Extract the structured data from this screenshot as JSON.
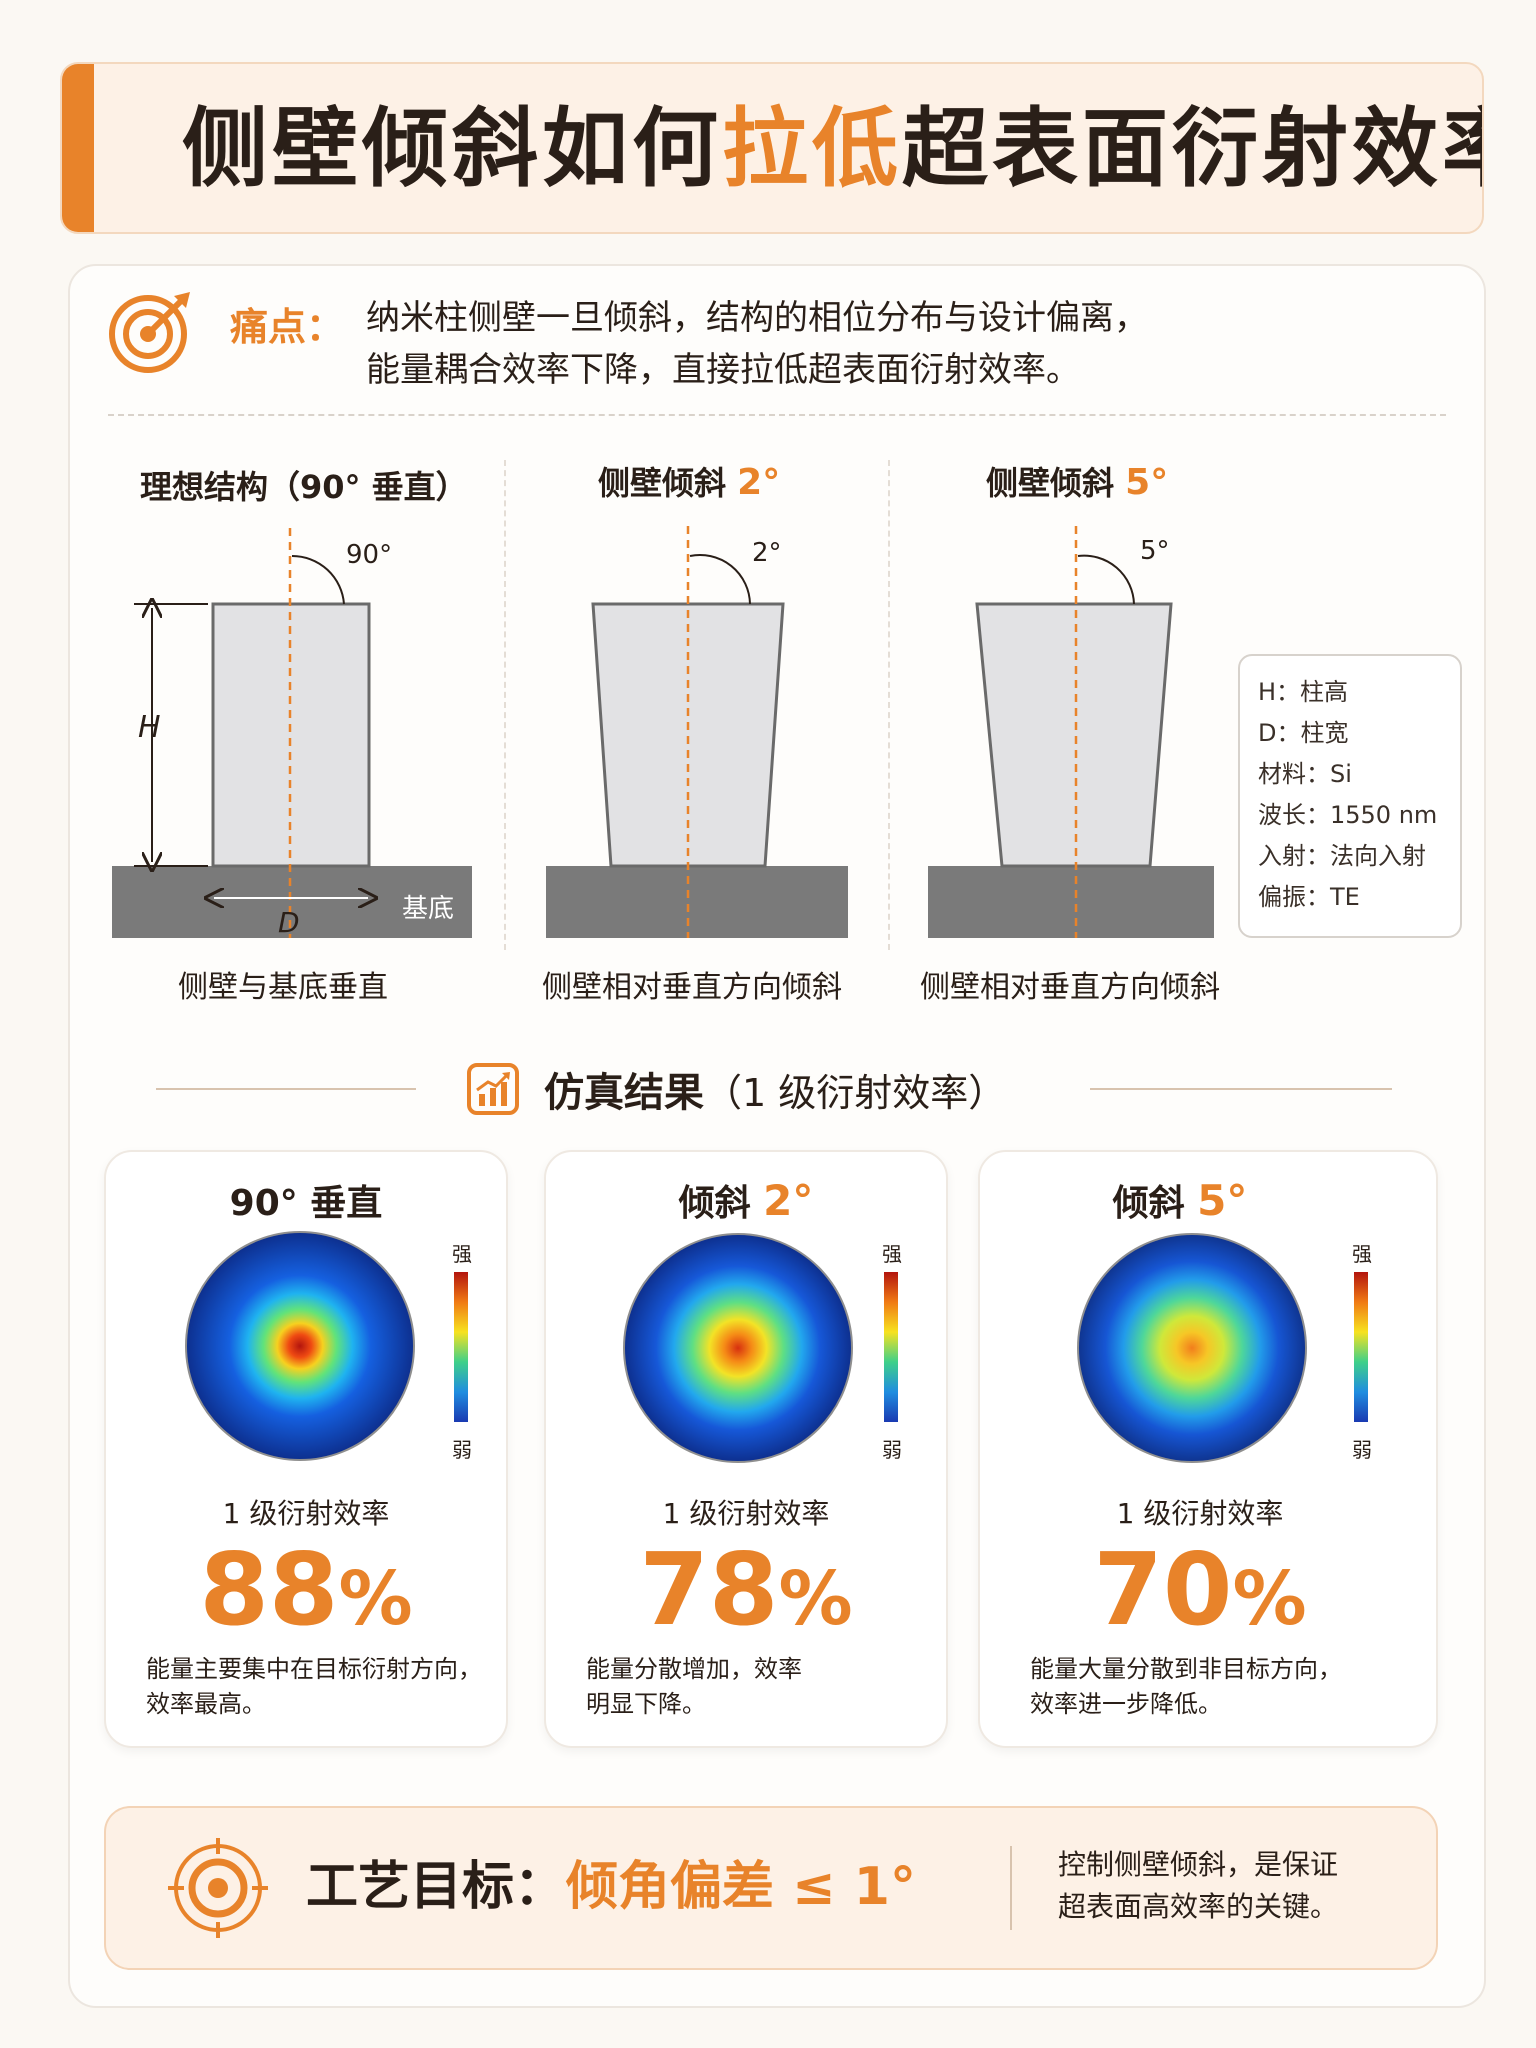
{
  "header": {
    "title_prefix": "侧壁倾斜如何",
    "title_highlight": "拉低",
    "title_suffix": "超表面衍射效率"
  },
  "pain_point": {
    "label": "痛点：",
    "line1": "纳米柱侧壁一旦倾斜，结构的相位分布与设计偏离，",
    "line2": "能量耦合效率下降，直接拉低超表面衍射效率。",
    "icon": "target-arrow-icon"
  },
  "structures": [
    {
      "title": "理想结构（90° 垂直）",
      "title_highlight": "",
      "angle_label": "90°",
      "caption": "侧壁与基底垂直",
      "tilt_deg": 0
    },
    {
      "title": "侧壁倾斜",
      "title_highlight": "2°",
      "angle_label": "2°",
      "caption": "侧壁相对垂直方向倾斜",
      "tilt_deg": 2
    },
    {
      "title": "侧壁倾斜",
      "title_highlight": "5°",
      "angle_label": "5°",
      "caption": "侧壁相对垂直方向倾斜",
      "tilt_deg": 5
    }
  ],
  "dimension_labels": {
    "height": "H",
    "diameter": "D",
    "substrate": "基底"
  },
  "legend": [
    "H：柱高",
    "D：柱宽",
    "材料：Si",
    "波长：1550 nm",
    "入射：法向入射",
    "偏振：TE"
  ],
  "results_section": {
    "title": "仿真结果",
    "subtitle": "（1 级衍射效率）",
    "icon": "chart-growth-icon"
  },
  "results": [
    {
      "title": "90° 垂直",
      "title_highlight": "",
      "metric_label": "1 级衍射效率",
      "value": "88",
      "unit": "%",
      "note_line1": "能量主要集中在目标衍射方向，",
      "note_line2": "效率最高。",
      "colorbar_high": "强",
      "colorbar_low": "弱",
      "spot_spread": 0.28
    },
    {
      "title": "倾斜",
      "title_highlight": "2°",
      "metric_label": "1 级衍射效率",
      "value": "78",
      "unit": "%",
      "note_line1": "能量分散增加，效率",
      "note_line2": "明显下降。",
      "colorbar_high": "强",
      "colorbar_low": "弱",
      "spot_spread": 0.38
    },
    {
      "title": "倾斜",
      "title_highlight": "5°",
      "metric_label": "1 级衍射效率",
      "value": "70",
      "unit": "%",
      "note_line1": "能量大量分散到非目标方向，",
      "note_line2": "效率进一步降低。",
      "colorbar_high": "强",
      "colorbar_low": "弱",
      "spot_spread": 0.5
    }
  ],
  "goal": {
    "label": "工艺目标：",
    "value": "倾角偏差 ≤ 1°",
    "note_line1": "控制侧壁倾斜，是保证",
    "note_line2": "超表面高效率的关键。",
    "icon": "target-icon"
  },
  "colors": {
    "accent": "#e8832a",
    "text": "#2a1f18",
    "pillar": "#e2e2e4",
    "substrate": "#7a7a7a"
  }
}
